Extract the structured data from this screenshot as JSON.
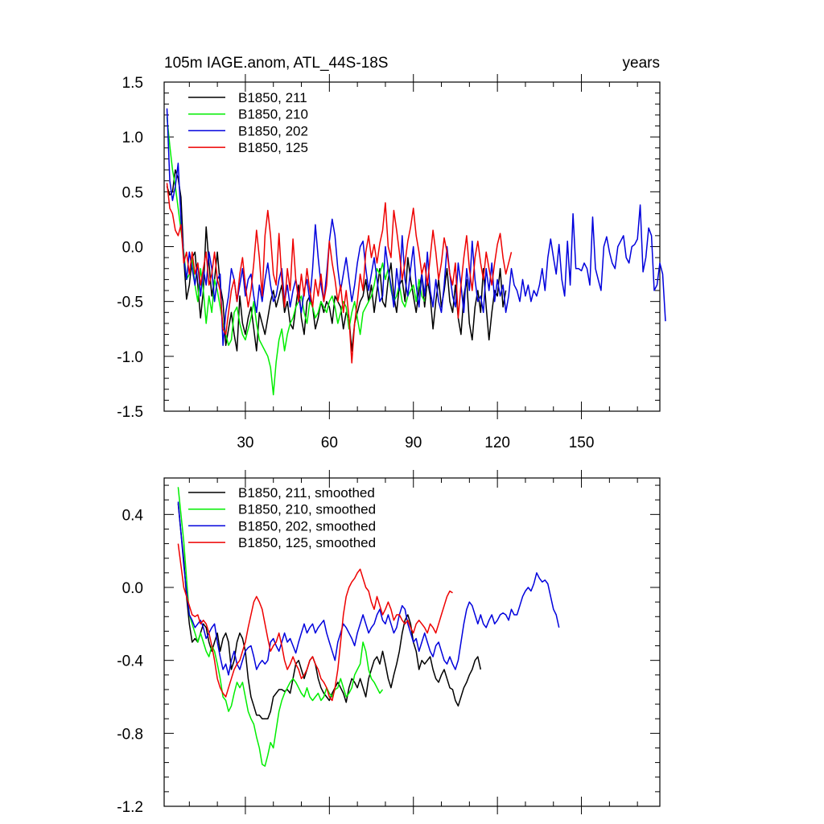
{
  "figure": {
    "title_left": "105m IAGE.anom, ATL_44S-18S",
    "title_right": "years"
  },
  "chart_data": [
    {
      "type": "line",
      "title": "105m IAGE.anom, ATL_44S-18S",
      "units": "years",
      "xlim": [
        1,
        178
      ],
      "ylim": [
        -1.5,
        1.5
      ],
      "xticks": [
        30,
        60,
        90,
        120,
        150
      ],
      "yticks": [
        -1.5,
        -1.0,
        -0.5,
        0.0,
        0.5,
        1.0,
        1.5
      ],
      "ytick_labels": [
        "-1.5",
        "-1.0",
        "-0.5",
        "0.0",
        "0.5",
        "1.0",
        "1.5"
      ],
      "legend_location": "top-left",
      "series": [
        {
          "name": "B1850, 211",
          "color": "#000000",
          "start_x": 2,
          "values": [
            0.55,
            0.47,
            0.5,
            0.7,
            0.62,
            0.45,
            -0.1,
            -0.48,
            -0.35,
            -0.1,
            -0.05,
            -0.35,
            -0.65,
            -0.4,
            0.18,
            -0.15,
            -0.45,
            -0.3,
            -0.05,
            -0.35,
            -0.5,
            -0.9,
            -0.75,
            -0.6,
            -0.8,
            -0.95,
            -0.45,
            -0.7,
            -0.8,
            -0.65,
            -0.55,
            -0.75,
            -0.95,
            -0.6,
            -0.7,
            -0.8,
            -0.65,
            -0.5,
            -0.4,
            -0.55,
            -0.45,
            -0.35,
            -0.6,
            -0.5,
            -0.7,
            -0.75,
            -0.55,
            -0.35,
            -0.65,
            -0.8,
            -0.5,
            -0.45,
            -0.55,
            -0.75,
            -0.65,
            -0.5,
            -0.6,
            -0.5,
            -0.55,
            -0.7,
            -0.45,
            -0.5,
            -0.55,
            -0.75,
            -0.6,
            -0.65,
            -0.95,
            -0.7,
            -0.6,
            -0.5,
            -0.45,
            -0.3,
            -0.5,
            -0.35,
            -0.6,
            -0.4,
            -0.2,
            -0.5,
            -0.55,
            -0.3,
            -0.15,
            -0.45,
            -0.6,
            -0.35,
            -0.3,
            -0.5,
            -0.1,
            -0.3,
            -0.45,
            -0.6,
            -0.4,
            -0.25,
            -0.55,
            -0.3,
            -0.45,
            -0.75,
            -0.5,
            -0.3,
            -0.55,
            -0.4,
            -0.2,
            -0.5,
            -0.6,
            -0.35,
            -0.65,
            -0.8,
            -0.45,
            -0.3,
            -0.7,
            -0.85,
            -0.55,
            -0.4,
            -0.6,
            -0.2,
            -0.55,
            -0.85,
            -0.6,
            -0.4,
            -0.45,
            -0.2,
            -0.55,
            -0.4
          ]
        },
        {
          "name": "B1850, 210",
          "color": "#00ee00",
          "start_x": 2,
          "values": [
            1.18,
            0.92,
            0.7,
            0.55,
            0.35,
            0.15,
            -0.05,
            -0.3,
            -0.25,
            -0.1,
            -0.35,
            -0.5,
            -0.2,
            -0.4,
            -0.7,
            -0.45,
            -0.6,
            -0.3,
            -0.4,
            -0.55,
            -0.7,
            -0.8,
            -0.9,
            -0.85,
            -0.6,
            -0.55,
            -0.7,
            -0.8,
            -0.85,
            -0.75,
            -0.65,
            -0.5,
            -0.7,
            -0.85,
            -0.9,
            -0.95,
            -1.0,
            -1.1,
            -1.35,
            -1.05,
            -0.85,
            -0.75,
            -0.95,
            -0.8,
            -0.7,
            -0.65,
            -0.55,
            -0.5,
            -0.45,
            -0.6,
            -0.7,
            -0.5,
            -0.55,
            -0.65,
            -0.6,
            -0.5,
            -0.55,
            -0.6,
            -0.5,
            -0.45,
            -0.55,
            -0.7,
            -0.6,
            -0.5,
            -0.55,
            -0.75,
            -0.6,
            -0.5,
            -0.65,
            -0.8,
            -0.6,
            -0.55,
            -0.5,
            -0.45,
            -0.35,
            -0.2,
            -0.25,
            -0.15,
            -0.3,
            -0.2,
            -0.4,
            -0.5,
            -0.45,
            -0.35,
            -0.5,
            -0.55,
            -0.45,
            -0.4,
            -0.35,
            -0.5,
            -0.3,
            -0.45,
            -0.5
          ]
        },
        {
          "name": "B1850, 202",
          "color": "#0000dd",
          "start_x": 2,
          "values": [
            1.26,
            0.6,
            0.42,
            0.55,
            0.76,
            0.25,
            -0.1,
            -0.3,
            -0.05,
            -0.2,
            -0.35,
            -0.15,
            -0.45,
            -0.2,
            -0.35,
            -0.05,
            -0.2,
            -0.5,
            -0.3,
            -0.25,
            -0.9,
            -0.6,
            -0.45,
            -0.2,
            -0.3,
            -0.5,
            -0.35,
            -0.2,
            -0.45,
            -0.3,
            -0.25,
            -0.45,
            -0.6,
            -0.35,
            -0.5,
            -0.3,
            -0.15,
            -0.35,
            -0.5,
            -0.45,
            -0.3,
            -0.2,
            -0.5,
            -0.35,
            -0.55,
            -0.4,
            -0.3,
            -0.45,
            -0.6,
            -0.4,
            -0.3,
            -0.5,
            -0.2,
            0.2,
            -0.1,
            -0.35,
            -0.5,
            -0.25,
            0.05,
            0.25,
            0.1,
            -0.2,
            -0.4,
            -0.25,
            -0.1,
            -0.3,
            -0.5,
            -0.35,
            -0.15,
            0.0,
            0.05,
            -0.2,
            -0.4,
            -0.25,
            -0.1,
            -0.3,
            -0.5,
            -0.45,
            0.0,
            -0.2,
            -0.35,
            -0.55,
            -0.2,
            -0.4,
            0.1,
            -0.3,
            -0.45,
            -0.2,
            0.0,
            -0.35,
            -0.55,
            -0.25,
            -0.45,
            -0.05,
            -0.4,
            -0.55,
            -0.3,
            -0.5,
            -0.6,
            -0.35,
            0.0,
            -0.25,
            -0.45,
            -0.55,
            -0.15,
            -0.35,
            -0.6,
            -0.2,
            -0.4,
            0.05,
            -0.3,
            -0.5,
            -0.45,
            -0.6,
            -0.2,
            -0.4,
            -0.15,
            -0.5,
            -0.3,
            -0.45,
            -0.35,
            -0.6,
            -0.45,
            -0.2,
            -0.35,
            -0.4,
            -0.5,
            -0.3,
            -0.45,
            -0.35,
            -0.5,
            -0.4,
            -0.45,
            -0.35,
            -0.2,
            -0.4,
            -0.1,
            0.07,
            -0.1,
            -0.25,
            0.02,
            -0.3,
            -0.45,
            0.05,
            -0.35,
            0.3,
            -0.2,
            -0.2,
            -0.22,
            -0.15,
            -0.2,
            -0.35,
            0.27,
            -0.2,
            -0.3,
            -0.4,
            0.0,
            0.09,
            -0.05,
            -0.15,
            -0.2,
            0.0,
            0.05,
            0.1,
            -0.1,
            -0.15,
            0.0,
            0.02,
            0.07,
            0.38,
            -0.23,
            -0.1,
            0.17,
            0.1,
            -0.4,
            -0.35,
            -0.15,
            -0.25,
            -0.68
          ]
        },
        {
          "name": "B1850, 125",
          "color": "#ee0000",
          "start_x": 2,
          "values": [
            0.58,
            0.35,
            0.3,
            0.15,
            0.1,
            0.2,
            -0.15,
            -0.05,
            -0.25,
            -0.05,
            -0.25,
            -0.15,
            -0.35,
            -0.2,
            -0.05,
            -0.35,
            -0.25,
            -0.05,
            -0.3,
            -0.4,
            -0.75,
            -0.8,
            -0.6,
            -0.4,
            -0.3,
            -0.5,
            -0.25,
            -0.1,
            -0.35,
            -0.55,
            -0.4,
            -0.15,
            0.15,
            -0.1,
            -0.45,
            0.1,
            0.33,
            0.1,
            -0.25,
            -0.35,
            0.12,
            -0.3,
            -0.55,
            -0.2,
            -0.4,
            0.07,
            -0.3,
            -0.5,
            -0.25,
            -0.45,
            -0.2,
            -0.4,
            -0.55,
            -0.3,
            -0.45,
            -0.25,
            -0.5,
            -0.35,
            0.05,
            -0.15,
            -0.3,
            -0.5,
            -0.35,
            -0.6,
            -0.4,
            -0.65,
            -1.06,
            -0.7,
            -0.5,
            -0.25,
            -0.4,
            -0.05,
            0.1,
            -0.1,
            0.02,
            -0.15,
            0.03,
            0.15,
            0.4,
            0.0,
            -0.1,
            0.33,
            0.15,
            -0.05,
            -0.3,
            -0.15,
            0.05,
            0.18,
            0.35,
            0.1,
            -0.05,
            -0.25,
            -0.15,
            -0.35,
            -0.1,
            0.15,
            -0.05,
            -0.3,
            -0.15,
            0.08,
            -0.05,
            -0.25,
            -0.35,
            -0.15,
            -0.65,
            -0.35,
            -0.1,
            0.1,
            -0.2,
            -0.4,
            -0.1,
            0.05,
            -0.15,
            -0.3,
            -0.05,
            -0.2,
            -0.35,
            -0.15,
            0.02,
            0.12,
            -0.1,
            -0.25,
            -0.15,
            -0.05
          ]
        }
      ]
    },
    {
      "type": "line",
      "xlim": [
        1,
        178
      ],
      "ylim": [
        -1.2,
        0.6
      ],
      "xticks": [
        30,
        60,
        90,
        120,
        150
      ],
      "yticks": [
        -1.2,
        -0.8,
        -0.4,
        0.0,
        0.4
      ],
      "ytick_labels": [
        "-1.2",
        "-0.8",
        "-0.4",
        "0.0",
        "0.4"
      ],
      "legend_location": "top-left",
      "series": [
        {
          "name": "B1850, 211, smoothed",
          "color": "#000000",
          "start_x": 6,
          "values": [
            0.46,
            0.3,
            0.15,
            -0.05,
            -0.2,
            -0.3,
            -0.28,
            -0.3,
            -0.25,
            -0.2,
            -0.22,
            -0.3,
            -0.35,
            -0.3,
            -0.25,
            -0.35,
            -0.28,
            -0.25,
            -0.3,
            -0.45,
            -0.4,
            -0.3,
            -0.25,
            -0.28,
            -0.35,
            -0.5,
            -0.6,
            -0.65,
            -0.7,
            -0.7,
            -0.72,
            -0.72,
            -0.72,
            -0.68,
            -0.6,
            -0.58,
            -0.56,
            -0.56,
            -0.57,
            -0.56,
            -0.58,
            -0.5,
            -0.42,
            -0.4,
            -0.45,
            -0.5,
            -0.45,
            -0.4,
            -0.38,
            -0.42,
            -0.5,
            -0.55,
            -0.58,
            -0.6,
            -0.62,
            -0.58,
            -0.55,
            -0.52,
            -0.55,
            -0.58,
            -0.63,
            -0.55,
            -0.5,
            -0.52,
            -0.55,
            -0.5,
            -0.55,
            -0.6,
            -0.5,
            -0.45,
            -0.4,
            -0.38,
            -0.42,
            -0.35,
            -0.42,
            -0.5,
            -0.55,
            -0.48,
            -0.42,
            -0.35,
            -0.25,
            -0.18,
            -0.15,
            -0.2,
            -0.3,
            -0.35,
            -0.45,
            -0.4,
            -0.42,
            -0.4,
            -0.38,
            -0.45,
            -0.5,
            -0.52,
            -0.48,
            -0.45,
            -0.5,
            -0.55,
            -0.56,
            -0.62,
            -0.65,
            -0.6,
            -0.55,
            -0.52,
            -0.48,
            -0.45,
            -0.4,
            -0.38,
            -0.45
          ]
        },
        {
          "name": "B1850, 210, smoothed",
          "color": "#00ee00",
          "start_x": 6,
          "values": [
            0.55,
            0.4,
            0.25,
            0.05,
            -0.15,
            -0.2,
            -0.25,
            -0.3,
            -0.25,
            -0.3,
            -0.35,
            -0.38,
            -0.32,
            -0.35,
            -0.42,
            -0.5,
            -0.6,
            -0.62,
            -0.68,
            -0.65,
            -0.58,
            -0.52,
            -0.55,
            -0.52,
            -0.6,
            -0.68,
            -0.72,
            -0.75,
            -0.82,
            -0.88,
            -0.97,
            -0.98,
            -0.92,
            -0.85,
            -0.88,
            -0.78,
            -0.68,
            -0.62,
            -0.58,
            -0.55,
            -0.52,
            -0.5,
            -0.52,
            -0.55,
            -0.58,
            -0.6,
            -0.55,
            -0.6,
            -0.62,
            -0.6,
            -0.58,
            -0.62,
            -0.6,
            -0.55,
            -0.58,
            -0.6,
            -0.56,
            -0.55,
            -0.5,
            -0.55,
            -0.6,
            -0.58,
            -0.55,
            -0.48,
            -0.45,
            -0.42,
            -0.3,
            -0.35,
            -0.45,
            -0.5,
            -0.52,
            -0.55,
            -0.58,
            -0.56
          ]
        },
        {
          "name": "B1850, 202, smoothed",
          "color": "#0000dd",
          "start_x": 6,
          "values": [
            0.47,
            0.3,
            0.12,
            -0.02,
            -0.15,
            -0.18,
            -0.22,
            -0.2,
            -0.18,
            -0.22,
            -0.28,
            -0.25,
            -0.22,
            -0.2,
            -0.3,
            -0.38,
            -0.45,
            -0.42,
            -0.48,
            -0.4,
            -0.35,
            -0.42,
            -0.45,
            -0.4,
            -0.35,
            -0.33,
            -0.32,
            -0.38,
            -0.45,
            -0.42,
            -0.4,
            -0.42,
            -0.4,
            -0.3,
            -0.28,
            -0.32,
            -0.35,
            -0.3,
            -0.25,
            -0.3,
            -0.28,
            -0.32,
            -0.36,
            -0.3,
            -0.25,
            -0.2,
            -0.25,
            -0.22,
            -0.2,
            -0.25,
            -0.22,
            -0.2,
            -0.18,
            -0.25,
            -0.3,
            -0.35,
            -0.4,
            -0.3,
            -0.25,
            -0.2,
            -0.22,
            -0.25,
            -0.28,
            -0.32,
            -0.25,
            -0.2,
            -0.15,
            -0.2,
            -0.25,
            -0.22,
            -0.2,
            -0.15,
            -0.12,
            -0.18,
            -0.2,
            -0.15,
            -0.2,
            -0.25,
            -0.22,
            -0.15,
            -0.1,
            -0.12,
            -0.2,
            -0.25,
            -0.3,
            -0.28,
            -0.35,
            -0.3,
            -0.25,
            -0.3,
            -0.35,
            -0.38,
            -0.32,
            -0.3,
            -0.35,
            -0.4,
            -0.42,
            -0.38,
            -0.42,
            -0.45,
            -0.4,
            -0.3,
            -0.2,
            -0.12,
            -0.08,
            -0.1,
            -0.15,
            -0.2,
            -0.15,
            -0.2,
            -0.22,
            -0.18,
            -0.15,
            -0.2,
            -0.18,
            -0.15,
            -0.14,
            -0.15,
            -0.18,
            -0.12,
            -0.15,
            -0.15,
            -0.1,
            -0.05,
            -0.02,
            0.0,
            -0.02,
            0.02,
            0.08,
            0.05,
            0.03,
            0.04,
            0.02,
            -0.05,
            -0.12,
            -0.15,
            -0.22
          ]
        },
        {
          "name": "B1850, 125, smoothed",
          "color": "#ee0000",
          "start_x": 6,
          "values": [
            0.24,
            0.12,
            0.0,
            -0.05,
            -0.1,
            -0.15,
            -0.16,
            -0.15,
            -0.2,
            -0.18,
            -0.2,
            -0.25,
            -0.32,
            -0.4,
            -0.5,
            -0.55,
            -0.58,
            -0.6,
            -0.55,
            -0.5,
            -0.45,
            -0.42,
            -0.4,
            -0.35,
            -0.3,
            -0.22,
            -0.15,
            -0.08,
            -0.05,
            -0.08,
            -0.12,
            -0.2,
            -0.28,
            -0.35,
            -0.32,
            -0.3,
            -0.25,
            -0.32,
            -0.4,
            -0.45,
            -0.42,
            -0.38,
            -0.42,
            -0.45,
            -0.5,
            -0.48,
            -0.45,
            -0.4,
            -0.38,
            -0.42,
            -0.45,
            -0.5,
            -0.52,
            -0.55,
            -0.6,
            -0.62,
            -0.55,
            -0.45,
            -0.3,
            -0.15,
            -0.05,
            0.0,
            0.03,
            0.05,
            0.08,
            0.1,
            0.05,
            0.0,
            -0.02,
            -0.08,
            -0.12,
            -0.05,
            -0.1,
            -0.15,
            -0.12,
            -0.08,
            -0.12,
            -0.18,
            -0.15,
            -0.15,
            -0.18,
            -0.2,
            -0.18,
            -0.22,
            -0.25,
            -0.2,
            -0.18,
            -0.2,
            -0.22,
            -0.25,
            -0.2,
            -0.22,
            -0.25,
            -0.2,
            -0.15,
            -0.1,
            -0.05,
            -0.02,
            -0.03
          ]
        }
      ]
    }
  ]
}
